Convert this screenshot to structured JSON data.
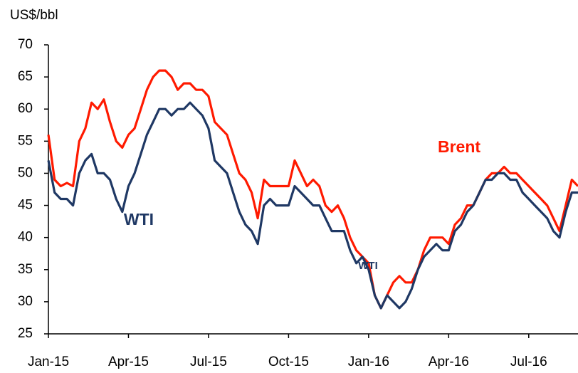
{
  "chart_data": {
    "type": "line",
    "y_label": "US$/bbl",
    "categories": [
      "Jan-15",
      null,
      null,
      null,
      null,
      null,
      null,
      null,
      null,
      null,
      null,
      null,
      null,
      "Apr-15",
      null,
      null,
      null,
      null,
      null,
      null,
      null,
      null,
      null,
      null,
      null,
      null,
      "Jul-15",
      null,
      null,
      null,
      null,
      null,
      null,
      null,
      null,
      null,
      null,
      null,
      null,
      "Oct-15",
      null,
      null,
      null,
      null,
      null,
      null,
      null,
      null,
      null,
      null,
      null,
      null,
      "Jan-16",
      null,
      null,
      null,
      null,
      null,
      null,
      null,
      null,
      null,
      null,
      null,
      null,
      "Apr-16",
      null,
      null,
      null,
      null,
      null,
      null,
      null,
      null,
      null,
      null,
      null,
      null,
      "Jul-16",
      null,
      null,
      null,
      null,
      null,
      null,
      null,
      null
    ],
    "series": [
      {
        "name": "Brent",
        "color": "#ff1a00",
        "values": [
          56,
          49,
          48,
          48.5,
          48,
          55,
          57,
          61,
          60,
          61.5,
          58,
          55,
          54,
          56,
          57,
          60,
          63,
          65,
          66,
          66,
          65,
          63,
          64,
          64,
          63,
          63,
          62,
          58,
          57,
          56,
          53,
          50,
          49,
          47,
          43,
          49,
          48,
          48,
          48,
          48,
          52,
          50,
          48,
          49,
          48,
          45,
          44,
          45,
          43,
          40,
          38,
          37,
          36,
          31,
          29,
          31,
          33,
          34,
          33,
          33,
          35,
          38,
          40,
          40,
          40,
          39,
          42,
          43,
          45,
          45,
          47,
          49,
          50,
          50,
          51,
          50,
          50,
          49,
          48,
          47,
          46,
          45,
          43,
          41,
          45,
          49,
          48
        ]
      },
      {
        "name": "WTI",
        "color": "#1f3864",
        "values": [
          52,
          47,
          46,
          46,
          45,
          50,
          52,
          53,
          50,
          50,
          49,
          46,
          44,
          48,
          50,
          53,
          56,
          58,
          60,
          60,
          59,
          60,
          60,
          61,
          60,
          59,
          57,
          52,
          51,
          50,
          47,
          44,
          42,
          41,
          39,
          45,
          46,
          45,
          45,
          45,
          48,
          47,
          46,
          45,
          45,
          43,
          41,
          41,
          41,
          38,
          36,
          37,
          35,
          31,
          29,
          31,
          30,
          29,
          30,
          32,
          35,
          37,
          38,
          39,
          38,
          38,
          41,
          42,
          44,
          45,
          47,
          49,
          49,
          50,
          50,
          49,
          49,
          47,
          46,
          45,
          44,
          43,
          41,
          40,
          44,
          47,
          47
        ]
      }
    ],
    "annotations": [
      {
        "text": "WTI",
        "color": "#1f3864"
      }
    ],
    "ylim": [
      25,
      70
    ],
    "yticks": [
      25,
      30,
      35,
      40,
      45,
      50,
      55,
      60,
      65,
      70
    ]
  }
}
